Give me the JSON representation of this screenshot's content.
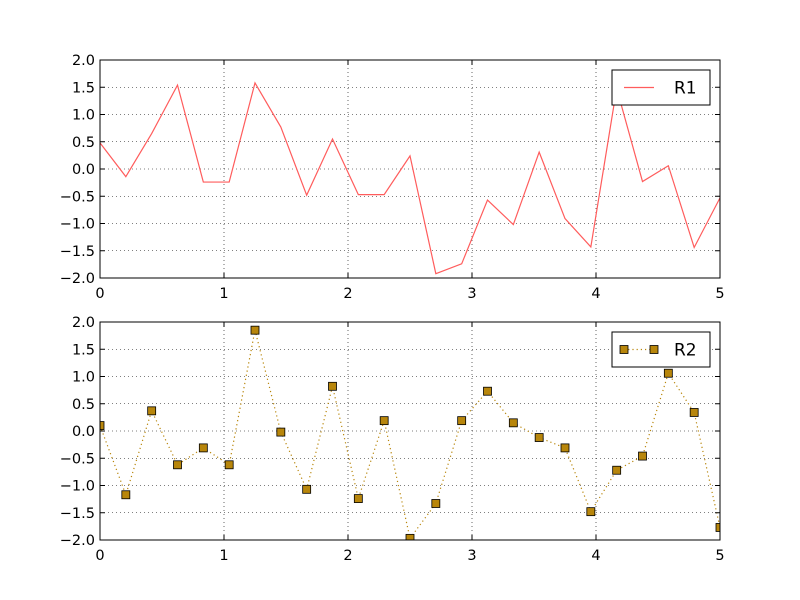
{
  "chart_data": [
    {
      "type": "line",
      "x": [
        0.0,
        0.2083,
        0.4167,
        0.625,
        0.8333,
        1.0417,
        1.25,
        1.4583,
        1.6667,
        1.875,
        2.0833,
        2.2917,
        2.5,
        2.7083,
        2.9167,
        3.125,
        3.3333,
        3.5417,
        3.75,
        3.9583,
        4.1667,
        4.375,
        4.5833,
        4.7917,
        5.0
      ],
      "series": [
        {
          "name": "R1",
          "values": [
            0.48,
            -0.14,
            0.65,
            1.54,
            -0.24,
            -0.24,
            1.58,
            0.77,
            -0.48,
            0.55,
            -0.47,
            -0.47,
            0.24,
            -1.92,
            -1.74,
            -0.57,
            -1.02,
            0.31,
            -0.91,
            -1.43,
            1.48,
            -0.23,
            0.06,
            -1.44,
            -0.53
          ],
          "color": "#ff5c5c",
          "line_style": "solid",
          "marker": "none"
        }
      ],
      "xlim": [
        0,
        5
      ],
      "ylim": [
        -2.0,
        2.0
      ],
      "xticks": [
        "0",
        "1",
        "2",
        "3",
        "4",
        "5"
      ],
      "yticks": [
        "−2.0",
        "−1.5",
        "−1.0",
        "−0.5",
        "0.0",
        "0.5",
        "1.0",
        "1.5",
        "2.0"
      ],
      "xtick_values": [
        0,
        1,
        2,
        3,
        4,
        5
      ],
      "ytick_values": [
        -2.0,
        -1.5,
        -1.0,
        -0.5,
        0.0,
        0.5,
        1.0,
        1.5,
        2.0
      ],
      "grid": true,
      "legend": "upper right"
    },
    {
      "type": "line",
      "x": [
        0.0,
        0.2083,
        0.4167,
        0.625,
        0.8333,
        1.0417,
        1.25,
        1.4583,
        1.6667,
        1.875,
        2.0833,
        2.2917,
        2.5,
        2.7083,
        2.9167,
        3.125,
        3.3333,
        3.5417,
        3.75,
        3.9583,
        4.1667,
        4.375,
        4.5833,
        4.7917,
        5.0
      ],
      "series": [
        {
          "name": "R2",
          "values": [
            0.1,
            -1.17,
            0.37,
            -0.62,
            -0.31,
            -0.62,
            1.85,
            -0.02,
            -1.07,
            0.82,
            -1.24,
            0.19,
            -1.97,
            -1.33,
            0.19,
            0.73,
            0.15,
            -0.12,
            -0.31,
            -1.48,
            -0.72,
            -0.46,
            1.06,
            0.34,
            -1.77
          ],
          "color": "#b8860b",
          "line_style": "dotted",
          "marker": "square"
        }
      ],
      "xlim": [
        0,
        5
      ],
      "ylim": [
        -2.0,
        2.0
      ],
      "xticks": [
        "0",
        "1",
        "2",
        "3",
        "4",
        "5"
      ],
      "yticks": [
        "−2.0",
        "−1.5",
        "−1.0",
        "−0.5",
        "0.0",
        "0.5",
        "1.0",
        "1.5",
        "2.0"
      ],
      "xtick_values": [
        0,
        1,
        2,
        3,
        4,
        5
      ],
      "ytick_values": [
        -2.0,
        -1.5,
        -1.0,
        -0.5,
        0.0,
        0.5,
        1.0,
        1.5,
        2.0
      ],
      "grid": true,
      "legend": "upper right"
    }
  ]
}
